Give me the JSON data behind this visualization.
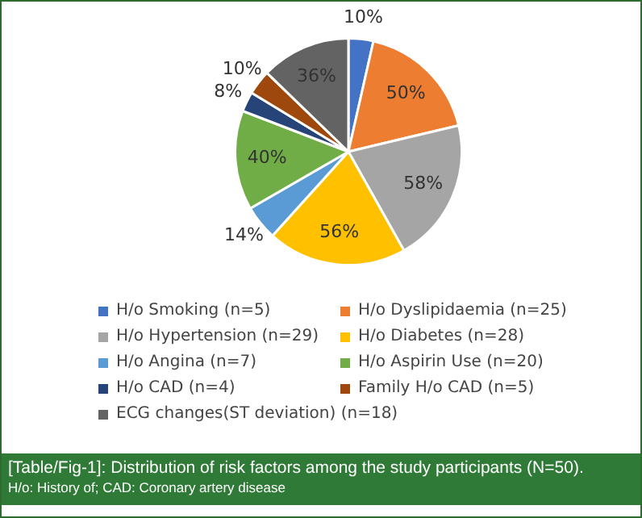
{
  "chart_data": {
    "type": "pie",
    "title": "[Table/Fig-1]: Distribution of risk factors among the study participants (N=50).",
    "annotations": [
      "H/o: History of; CAD: Coronary artery disease"
    ],
    "categories": [
      "H/o Smoking (n=5)",
      "H/o Dyslipidaemia (n=25)",
      "H/o Hypertension (n=29)",
      "H/o Diabetes (n=28)",
      "H/o Angina (n=7)",
      "H/o Aspirin Use (n=20)",
      "H/o CAD (n=4)",
      "Family H/o CAD (n=5)",
      "ECG changes(ST deviation) (n=18)"
    ],
    "values": [
      10,
      50,
      58,
      56,
      14,
      40,
      8,
      10,
      36
    ],
    "value_labels": [
      "10%",
      "50%",
      "58%",
      "56%",
      "14%",
      "40%",
      "8%",
      "10%",
      "36%"
    ],
    "colors": [
      "#4472c4",
      "#ed7d31",
      "#a5a5a5",
      "#ffc000",
      "#5b9bd5",
      "#70ad47",
      "#264478",
      "#9e480e",
      "#636363"
    ],
    "legend": "bottom"
  }
}
